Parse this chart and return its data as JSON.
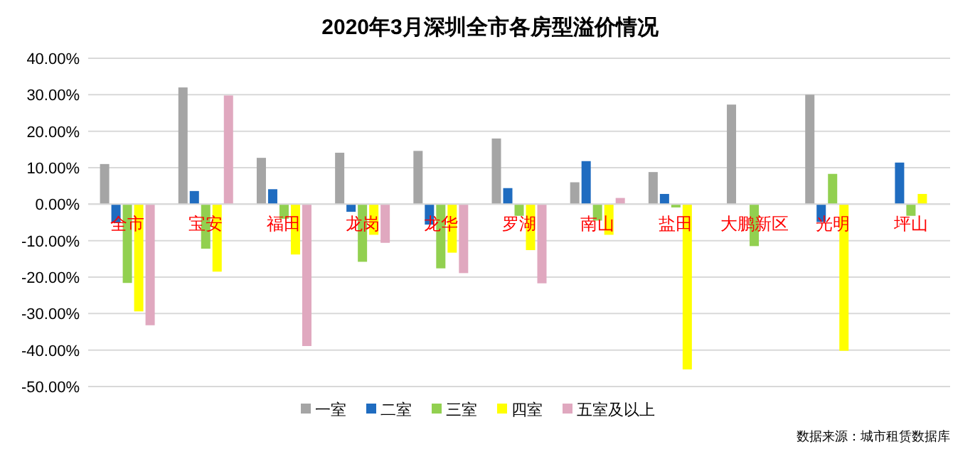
{
  "chart_data": {
    "type": "bar",
    "title": "2020年3月深圳全市各房型溢价情况",
    "categories": [
      "全市",
      "宝安",
      "福田",
      "龙岗",
      "龙华",
      "罗湖",
      "南山",
      "盐田",
      "大鹏新区",
      "光明",
      "坪山"
    ],
    "series": [
      {
        "name": "一室",
        "color": "#a5a5a5",
        "values": [
          11.0,
          32.0,
          12.7,
          14.1,
          14.6,
          18.0,
          6.0,
          8.8,
          27.3,
          30.0,
          null
        ]
      },
      {
        "name": "二室",
        "color": "#1f6cc0",
        "values": [
          -5.0,
          3.6,
          4.1,
          -2.1,
          -5.6,
          4.4,
          11.8,
          2.8,
          null,
          -4.9,
          11.4
        ]
      },
      {
        "name": "三室",
        "color": "#92d050",
        "values": [
          -21.6,
          -12.2,
          -4.0,
          -15.8,
          -17.6,
          -3.2,
          -4.5,
          -0.9,
          -11.5,
          8.3,
          -3.2
        ]
      },
      {
        "name": "四室",
        "color": "#ffff00",
        "values": [
          -29.4,
          -18.5,
          -13.8,
          -8.4,
          -13.3,
          -12.6,
          -8.4,
          -45.3,
          null,
          -40.2,
          2.8
        ]
      },
      {
        "name": "五室及以上",
        "color": "#e0a8bf",
        "values": [
          -33.2,
          29.8,
          -38.9,
          -10.6,
          -18.9,
          -21.7,
          1.7,
          null,
          null,
          null,
          null
        ]
      }
    ],
    "ylim": [
      -50,
      40
    ],
    "yticks": [
      {
        "value": -50,
        "label": "-50.00%"
      },
      {
        "value": -40,
        "label": "-40.00%"
      },
      {
        "value": -30,
        "label": "-30.00%"
      },
      {
        "value": -20,
        "label": "-20.00%"
      },
      {
        "value": -10,
        "label": "-10.00%"
      },
      {
        "value": 0,
        "label": "0.00%"
      },
      {
        "value": 10,
        "label": "10.00%"
      },
      {
        "value": 20,
        "label": "20.00%"
      },
      {
        "value": 30,
        "label": "30.00%"
      },
      {
        "value": 40,
        "label": "40.00%"
      }
    ],
    "grid": "y",
    "legend": "bottom",
    "annotations": [
      "数据来源：城市租赁数据库"
    ]
  }
}
